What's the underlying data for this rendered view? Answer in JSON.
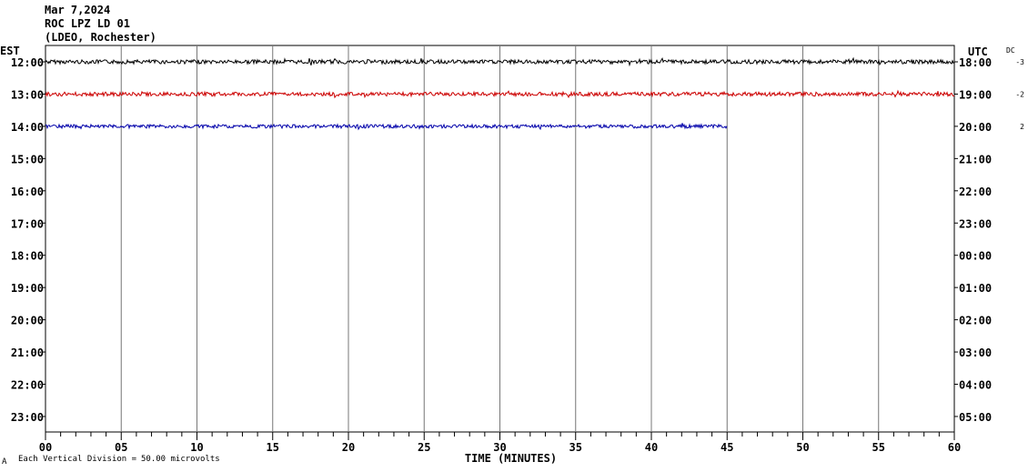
{
  "header": {
    "line1": "Mar 7,2024",
    "line2": "ROC LPZ LD 01",
    "line3": "(LDEO, Rochester)"
  },
  "footer": {
    "corner_mark": "A",
    "division_label": "Each Vertical Division =",
    "division_value": "50.00 microvolts"
  },
  "chart_data": {
    "type": "line",
    "title": "",
    "xlabel": "TIME (MINUTES)",
    "xlim": [
      0,
      60
    ],
    "x_ticks": [
      "00",
      "05",
      "10",
      "15",
      "20",
      "25",
      "30",
      "35",
      "40",
      "45",
      "50",
      "55",
      "60"
    ],
    "x_minor_step": 1,
    "grid": "vertical-every-5-min",
    "left_axis_title": "EST",
    "right_axis_title": "UTC",
    "dc_title": "DC",
    "left_labels": [
      "12:00",
      "13:00",
      "14:00",
      "15:00",
      "16:00",
      "17:00",
      "18:00",
      "19:00",
      "20:00",
      "21:00",
      "22:00",
      "23:00"
    ],
    "right_labels": [
      "18:00",
      "19:00",
      "20:00",
      "21:00",
      "22:00",
      "23:00",
      "00:00",
      "01:00",
      "02:00",
      "03:00",
      "04:00",
      "05:00"
    ],
    "dc_offsets": [
      "-3",
      "-2",
      "2"
    ],
    "series": [
      {
        "row": 0,
        "color": "#000000",
        "start_min": 0,
        "end_min": 60,
        "amplitude": 2.2
      },
      {
        "row": 1,
        "color": "#cc0000",
        "start_min": 0,
        "end_min": 60,
        "amplitude": 2.2
      },
      {
        "row": 2,
        "color": "#0000aa",
        "start_min": 0,
        "end_min": 45,
        "amplitude": 2.0
      }
    ]
  }
}
